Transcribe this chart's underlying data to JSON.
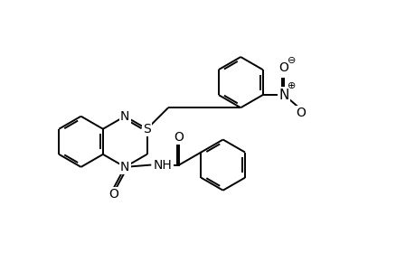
{
  "background": "#ffffff",
  "line_color": "#000000",
  "line_width": 1.4,
  "font_size": 10,
  "figsize": [
    4.6,
    3.0
  ],
  "dpi": 100,
  "xlim": [
    0,
    10
  ],
  "ylim": [
    0,
    6.5
  ]
}
